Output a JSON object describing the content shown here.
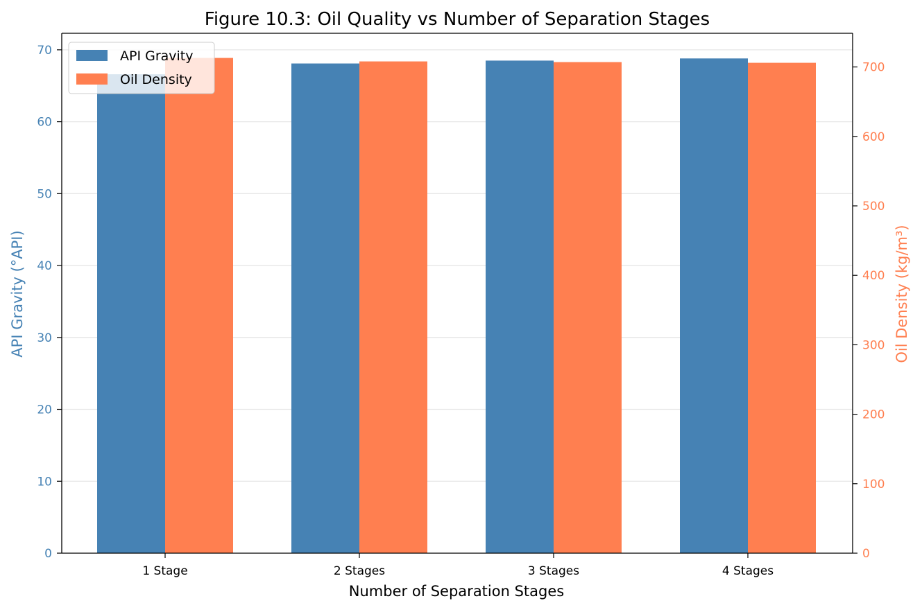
{
  "chart_data": {
    "type": "bar",
    "title": "Figure 10.3: Oil Quality vs Number of Separation Stages",
    "xlabel": "Number of Separation Stages",
    "categories": [
      "1 Stage",
      "2 Stages",
      "3 Stages",
      "4 Stages"
    ],
    "y_left": {
      "label": "API Gravity (°API)",
      "ylim": [
        0,
        72.3
      ],
      "ticks": [
        "0",
        "10",
        "20",
        "30",
        "40",
        "50",
        "60",
        "70"
      ],
      "color": "#4682B4"
    },
    "y_right": {
      "label": "Oil Density (kg/m³)",
      "ylim": [
        0,
        748.5
      ],
      "ticks": [
        "0",
        "100",
        "200",
        "300",
        "400",
        "500",
        "600",
        "700"
      ],
      "color": "#FF7F50"
    },
    "series": [
      {
        "name": "API Gravity",
        "axis": "left",
        "color": "#4682B4",
        "values": [
          66.6,
          68.1,
          68.5,
          68.8
        ]
      },
      {
        "name": "Oil Density",
        "axis": "right",
        "color": "#FF7F50",
        "values": [
          713,
          708,
          707,
          706
        ]
      }
    ],
    "grid": "y-major",
    "legend": "top-left"
  }
}
